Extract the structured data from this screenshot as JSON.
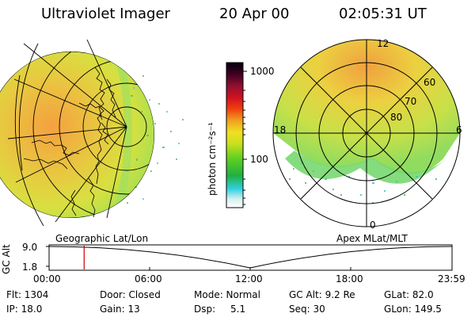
{
  "header": {
    "instrument": "Ultraviolet Imager",
    "date": "20 Apr 00",
    "time": "02:05:31 UT"
  },
  "colorbar": {
    "unit_label": "photon cm⁻²s⁻¹",
    "ticks": [
      "1000",
      "100"
    ],
    "scale": "log"
  },
  "left_panel": {
    "caption": "Geographic Lat/Lon",
    "projection": "globe-view"
  },
  "right_panel": {
    "caption": "Apex MLat/MLT",
    "mlt_labels": {
      "top": "12",
      "left": "18",
      "right": "6",
      "bottom": "0"
    },
    "lat_labels": [
      "60",
      "70",
      "80"
    ]
  },
  "timeline": {
    "ylabel": "GC Alt",
    "ymax": "9.0",
    "ymin": "1.8",
    "xticks": [
      "00:00",
      "06:00",
      "12:00",
      "18:00",
      "23:59"
    ],
    "current_time_fraction": 0.087
  },
  "info": {
    "flt": "Flt: 1304",
    "ip": "IP: 18.0",
    "door": "Door: Closed",
    "gain": "Gain: 13",
    "mode": "Mode: Normal",
    "dsp_label": "Dsp:",
    "dsp_value": "5.1",
    "gcalt": "GC Alt: 9.2 Re",
    "seq": "Seq: 30",
    "glat": "GLat:  82.0",
    "glon": "GLon: 149.5"
  },
  "colors": {
    "marker": "#cc0000",
    "high": "#f0a030",
    "mid": "#e8e040",
    "low": "#5ad24a"
  }
}
